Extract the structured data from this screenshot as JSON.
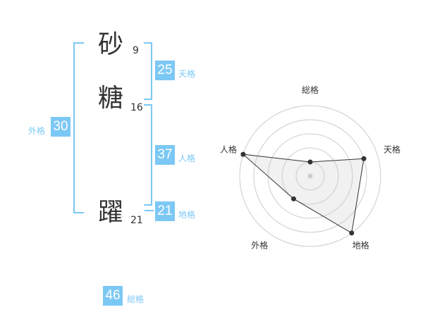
{
  "name": {
    "chars": [
      {
        "char": "砂",
        "strokes": "9"
      },
      {
        "char": "糖",
        "strokes": "16"
      },
      {
        "char": "躍",
        "strokes": "21"
      }
    ]
  },
  "fortunes": {
    "tenkaku": {
      "label": "天格",
      "value": "25"
    },
    "jinkaku": {
      "label": "人格",
      "value": "37"
    },
    "chikaku": {
      "label": "地格",
      "value": "21"
    },
    "gaikaku": {
      "label": "外格",
      "value": "30"
    },
    "soukaku": {
      "label": "総格",
      "value": "46"
    }
  },
  "accent_color": "#7cc8f5",
  "chart_data": {
    "type": "radar",
    "axes": [
      "総格",
      "天格",
      "地格",
      "外格",
      "人格"
    ],
    "values": [
      1,
      4,
      5,
      2,
      5
    ],
    "rmax": 5,
    "rings": 5
  }
}
